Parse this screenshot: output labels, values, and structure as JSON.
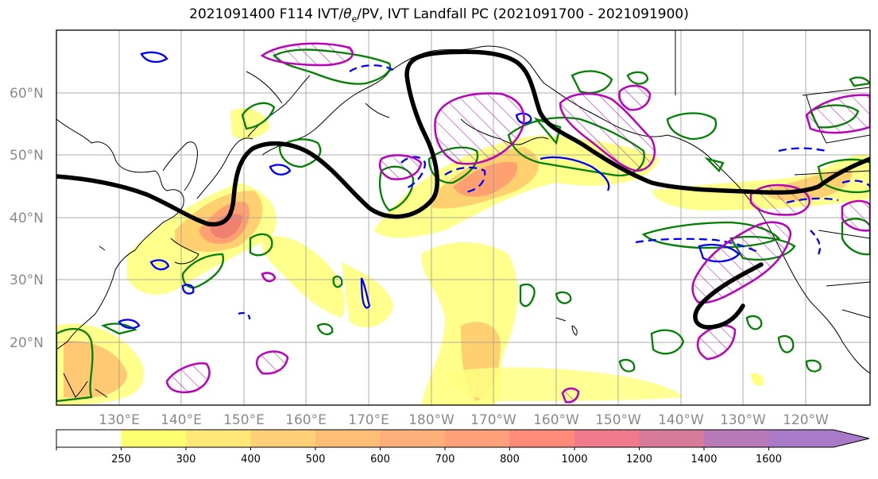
{
  "title": {
    "prefix": "2021091400 F114 IVT/",
    "theta": "θ",
    "theta_sub": "e",
    "suffix": "/PV, IVT Landfall PC (2021091700 - 2021091900)"
  },
  "axes": {
    "lat_labels": [
      "60°N",
      "50°N",
      "40°N",
      "30°N",
      "20°N"
    ],
    "lon_labels": [
      "130°E",
      "140°E",
      "150°E",
      "160°E",
      "170°E",
      "180°W",
      "170°W",
      "160°W",
      "150°W",
      "140°W",
      "130°W",
      "120°W"
    ]
  },
  "colorbar": {
    "levels": [
      "250",
      "300",
      "400",
      "500",
      "600",
      "700",
      "800",
      "1000",
      "1200",
      "1400",
      "1600"
    ],
    "colors": [
      "#ffffff",
      "#ffff70",
      "#ffe878",
      "#ffd078",
      "#ffbe78",
      "#ffb07a",
      "#ffa07a",
      "#ff8a7a",
      "#f07a8a",
      "#d87a9a",
      "#b87ab8",
      "#a87ac8"
    ]
  },
  "colors": {
    "ivt_contour_pc": "#000000",
    "theta_e_positive": "#008000",
    "theta_e_negative": "#0000ff",
    "pv": "#bb00bb",
    "coastline": "#000000",
    "gridline": "#999999"
  }
}
